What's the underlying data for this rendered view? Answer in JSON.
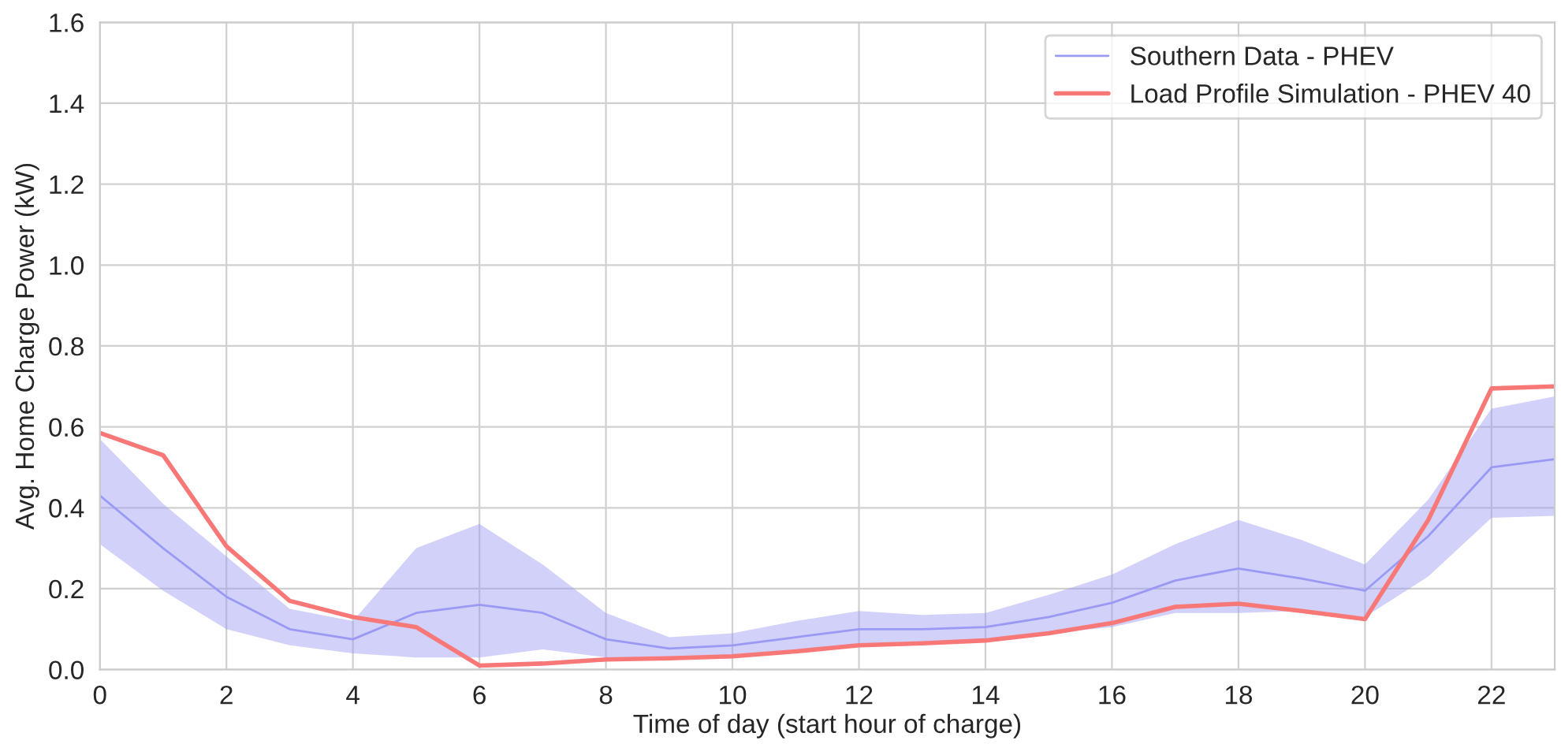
{
  "chart_data": {
    "type": "line",
    "xlabel": "Time of day (start hour of charge)",
    "ylabel": "Avg. Home Charge Power (kW)",
    "x": [
      0,
      1,
      2,
      3,
      4,
      5,
      6,
      7,
      8,
      9,
      10,
      11,
      12,
      13,
      14,
      15,
      16,
      17,
      18,
      19,
      20,
      21,
      22,
      23
    ],
    "series": [
      {
        "name": "Southern Data - PHEV",
        "color": "#9a9af5",
        "values": [
          0.43,
          0.3,
          0.18,
          0.1,
          0.075,
          0.14,
          0.16,
          0.14,
          0.075,
          0.052,
          0.06,
          0.08,
          0.1,
          0.1,
          0.105,
          0.13,
          0.165,
          0.22,
          0.25,
          0.225,
          0.195,
          0.33,
          0.5,
          0.52
        ],
        "lower": [
          0.31,
          0.195,
          0.1,
          0.06,
          0.04,
          0.03,
          0.03,
          0.05,
          0.03,
          0.03,
          0.035,
          0.05,
          0.06,
          0.065,
          0.07,
          0.09,
          0.105,
          0.14,
          0.14,
          0.145,
          0.13,
          0.23,
          0.375,
          0.38
        ],
        "upper": [
          0.57,
          0.41,
          0.28,
          0.15,
          0.12,
          0.3,
          0.36,
          0.26,
          0.14,
          0.08,
          0.09,
          0.12,
          0.145,
          0.135,
          0.14,
          0.185,
          0.235,
          0.31,
          0.37,
          0.32,
          0.26,
          0.42,
          0.645,
          0.675
        ]
      },
      {
        "name": "Load Profile Simulation - PHEV 40",
        "color": "#f87878",
        "values": [
          0.585,
          0.53,
          0.305,
          0.17,
          0.13,
          0.105,
          0.01,
          0.015,
          0.025,
          0.028,
          0.033,
          0.045,
          0.06,
          0.065,
          0.072,
          0.09,
          0.115,
          0.155,
          0.163,
          0.145,
          0.125,
          0.37,
          0.695,
          0.7
        ]
      }
    ],
    "xlim": [
      0,
      23
    ],
    "xticks": [
      0,
      2,
      4,
      6,
      8,
      10,
      12,
      14,
      16,
      18,
      20,
      22
    ],
    "ylim": [
      0,
      1.6
    ],
    "yticks": [
      {
        "value": 0,
        "label": "0.0"
      },
      {
        "value": 0.2,
        "label": "0.2"
      },
      {
        "value": 0.4,
        "label": "0.4"
      },
      {
        "value": 0.6,
        "label": "0.6"
      },
      {
        "value": 0.8,
        "label": "0.8"
      },
      {
        "value": 1.0,
        "label": "1.0"
      },
      {
        "value": 1.2,
        "label": "1.2"
      },
      {
        "value": 1.4,
        "label": "1.4"
      },
      {
        "value": 1.6,
        "label": "1.6"
      }
    ],
    "grid": true,
    "legend": "top right"
  }
}
